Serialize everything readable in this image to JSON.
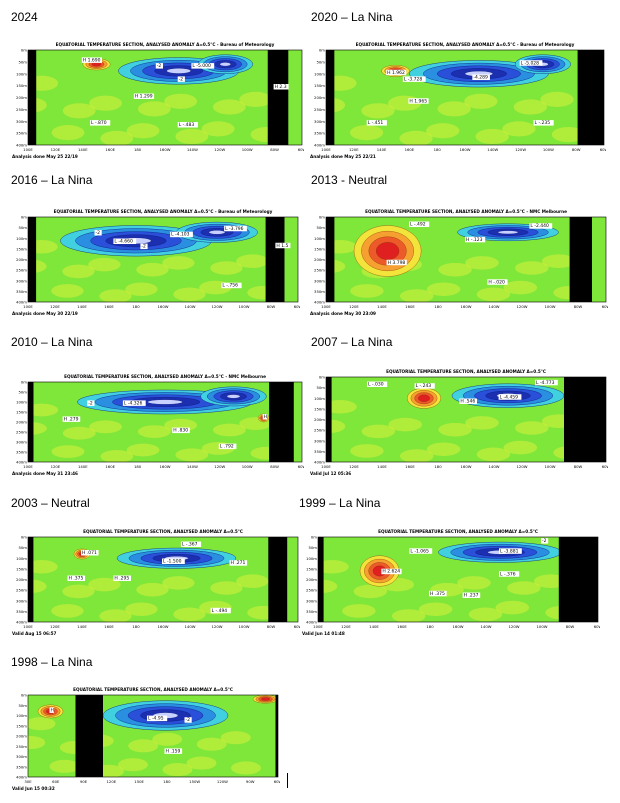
{
  "panels": [
    {
      "id": "p2024",
      "heading": "2024",
      "chart_title": "EQUATORIAL TEMPERATURE SECTION, ANALYSED ANOMALY  Δ=0.5°C  -  Bureau of Meteorology",
      "footer": "Analysis done May 25 22/19",
      "xticks": [
        "100E",
        "120E",
        "140E",
        "160E",
        "180",
        "160W",
        "140W",
        "120W",
        "100W",
        "80W",
        "60W"
      ],
      "yticks": [
        "0m",
        "50m",
        "100m",
        "150m",
        "200m",
        "250m",
        "300m",
        "350m",
        "400m"
      ],
      "labels": [
        {
          "t": "H 1.690",
          "x": 0.2,
          "y": 0.12
        },
        {
          "t": "-2",
          "x": 0.47,
          "y": 0.18
        },
        {
          "t": "L -5.000",
          "x": 0.6,
          "y": 0.18
        },
        {
          "t": "-2",
          "x": 0.55,
          "y": 0.32
        },
        {
          "t": "H 1.299",
          "x": 0.39,
          "y": 0.5
        },
        {
          "t": "H 2.3",
          "x": 0.9,
          "y": 0.4
        },
        {
          "t": "L -.870",
          "x": 0.23,
          "y": 0.78
        },
        {
          "t": "L -.483",
          "x": 0.55,
          "y": 0.8
        }
      ],
      "landmasks": [
        [
          0.0,
          0.03
        ],
        [
          0.875,
          0.95
        ]
      ],
      "cold": [
        {
          "cx": 0.55,
          "cy": 0.22,
          "rx": 0.22,
          "ry": 0.14
        },
        {
          "cx": 0.72,
          "cy": 0.15,
          "rx": 0.1,
          "ry": 0.1
        }
      ],
      "warm": [
        {
          "cx": 0.25,
          "cy": 0.15,
          "rx": 0.05,
          "ry": 0.06
        }
      ]
    },
    {
      "id": "p2020",
      "heading": "2020 – La Nina",
      "chart_title": "EQUATORIAL TEMPERATURE SECTION, ANALYSED ANOMALY  Δ=0.5°C  -  Bureau of Meteorology",
      "footer": "Analysis done May 25 22/21",
      "xticks": [
        "100E",
        "120E",
        "140E",
        "160E",
        "180",
        "160W",
        "140W",
        "120W",
        "100W",
        "80W",
        "60W"
      ],
      "yticks": [
        "0m",
        "50m",
        "100m",
        "150m",
        "200m",
        "250m",
        "300m",
        "350m",
        "400m"
      ],
      "labels": [
        {
          "t": "H 1.962",
          "x": 0.22,
          "y": 0.25
        },
        {
          "t": "L -3.728",
          "x": 0.28,
          "y": 0.32
        },
        {
          "t": "-4.289",
          "x": 0.53,
          "y": 0.3
        },
        {
          "t": "L -5.028",
          "x": 0.7,
          "y": 0.15
        },
        {
          "t": "H 1.965",
          "x": 0.3,
          "y": 0.55
        },
        {
          "t": "L -.451",
          "x": 0.15,
          "y": 0.78
        },
        {
          "t": "L -.235",
          "x": 0.75,
          "y": 0.78
        }
      ],
      "landmasks": [
        [
          0.0,
          0.03
        ],
        [
          0.905,
          1.0
        ]
      ],
      "cold": [
        {
          "cx": 0.55,
          "cy": 0.25,
          "rx": 0.25,
          "ry": 0.14
        },
        {
          "cx": 0.78,
          "cy": 0.15,
          "rx": 0.1,
          "ry": 0.1
        }
      ],
      "warm": [
        {
          "cx": 0.25,
          "cy": 0.22,
          "rx": 0.05,
          "ry": 0.06
        }
      ]
    },
    {
      "id": "p2016",
      "heading": "2016 – La Nina",
      "chart_title": "EQUATORIAL TEMPERATURE SECTION, ANALYSED ANOMALY  Δ=0.5°C  -  Bureau of Meteorology",
      "footer": "Analysis done May 30 22/19",
      "xticks": [
        "100E",
        "120E",
        "140E",
        "160E",
        "180",
        "160W",
        "140W",
        "120W",
        "100W",
        "80W",
        "60W"
      ],
      "yticks": [
        "0m",
        "50m",
        "100m",
        "150m",
        "200m",
        "250m",
        "300m",
        "350m",
        "400m"
      ],
      "labels": [
        {
          "t": "-2",
          "x": 0.25,
          "y": 0.2
        },
        {
          "t": "L -4.660",
          "x": 0.32,
          "y": 0.3
        },
        {
          "t": "-2",
          "x": 0.42,
          "y": 0.36
        },
        {
          "t": "L -4.103",
          "x": 0.53,
          "y": 0.22
        },
        {
          "t": "L -3.796",
          "x": 0.73,
          "y": 0.15
        },
        {
          "t": "H 1.5",
          "x": 0.92,
          "y": 0.35
        },
        {
          "t": "L -.756",
          "x": 0.72,
          "y": 0.82
        }
      ],
      "landmasks": [
        [
          0.0,
          0.03
        ],
        [
          0.88,
          0.95
        ]
      ],
      "cold": [
        {
          "cx": 0.4,
          "cy": 0.28,
          "rx": 0.28,
          "ry": 0.18
        },
        {
          "cx": 0.7,
          "cy": 0.18,
          "rx": 0.15,
          "ry": 0.12
        }
      ],
      "warm": []
    },
    {
      "id": "p2013",
      "heading": "2013 - Neutral",
      "chart_title": "EQUATORIAL TEMPERATURE SECTION, ANALYSED ANOMALY  Δ=0.5°C  -  NMC Melbourne",
      "footer": "Analysis done May 30 23:09",
      "xticks": [
        "100E",
        "120E",
        "140E",
        "160E",
        "180",
        "160W",
        "140W",
        "120W",
        "100W",
        "80W",
        "60W"
      ],
      "yticks": [
        "0m",
        "50m",
        "100m",
        "150m",
        "200m",
        "250m",
        "300m",
        "350m",
        "400m"
      ],
      "labels": [
        {
          "t": "L -.492",
          "x": 0.3,
          "y": 0.1
        },
        {
          "t": "H -.123",
          "x": 0.5,
          "y": 0.28
        },
        {
          "t": "L -2.440",
          "x": 0.73,
          "y": 0.12
        },
        {
          "t": "H 3.798",
          "x": 0.22,
          "y": 0.55
        },
        {
          "t": "H -.020",
          "x": 0.58,
          "y": 0.78
        }
      ],
      "landmasks": [
        [
          0.0,
          0.03
        ],
        [
          0.87,
          0.95
        ]
      ],
      "cold": [
        {
          "cx": 0.65,
          "cy": 0.18,
          "rx": 0.18,
          "ry": 0.1
        }
      ],
      "warm": [
        {
          "cx": 0.22,
          "cy": 0.4,
          "rx": 0.12,
          "ry": 0.3
        }
      ]
    },
    {
      "id": "p2010",
      "heading": "2010 – La Nina",
      "chart_title": "EQUATORIAL TEMPERATURE SECTION, ANALYSED ANOMALY  Δ=0.5°C  -  NMC Melbourne",
      "footer": "Analysis done May 31 23:46",
      "xticks": [
        "100E",
        "120E",
        "140E",
        "160E",
        "180",
        "160W",
        "140W",
        "120W",
        "100W",
        "80W",
        "60W"
      ],
      "yticks": [
        "0m",
        "50m",
        "100m",
        "150m",
        "200m",
        "250m",
        "300m",
        "350m",
        "400m"
      ],
      "labels": [
        {
          "t": "-2",
          "x": 0.22,
          "y": 0.28
        },
        {
          "t": "L -4.326",
          "x": 0.35,
          "y": 0.28
        },
        {
          "t": "H .279",
          "x": 0.13,
          "y": 0.48
        },
        {
          "t": "H .830",
          "x": 0.53,
          "y": 0.62
        },
        {
          "t": "H",
          "x": 0.86,
          "y": 0.45
        },
        {
          "t": "L .792",
          "x": 0.7,
          "y": 0.82
        }
      ],
      "landmasks": [
        [
          0.0,
          0.02
        ],
        [
          0.88,
          0.97
        ]
      ],
      "cold": [
        {
          "cx": 0.5,
          "cy": 0.25,
          "rx": 0.32,
          "ry": 0.15
        },
        {
          "cx": 0.75,
          "cy": 0.18,
          "rx": 0.12,
          "ry": 0.12
        }
      ],
      "warm": [
        {
          "cx": 0.86,
          "cy": 0.45,
          "rx": 0.02,
          "ry": 0.05
        }
      ]
    },
    {
      "id": "p2007",
      "heading": "2007 – La Nina",
      "chart_title": "EQUATORIAL TEMPERATURE SECTION, ANALYSED ANOMALY  Δ=0.5°C",
      "footer": "Valid Jul 12 05:36",
      "xticks": [
        "100E",
        "120E",
        "140E",
        "160E",
        "180",
        "160W",
        "140W",
        "120W",
        "100W",
        "80W",
        "60W"
      ],
      "yticks": [
        "0m",
        "50m",
        "100m",
        "150m",
        "200m",
        "250m",
        "300m",
        "350m",
        "400m"
      ],
      "labels": [
        {
          "t": "L -.030",
          "x": 0.15,
          "y": 0.1
        },
        {
          "t": "L -.243",
          "x": 0.32,
          "y": 0.12
        },
        {
          "t": "H .546",
          "x": 0.48,
          "y": 0.3
        },
        {
          "t": "L -4.459",
          "x": 0.62,
          "y": 0.25
        },
        {
          "t": "L -4.773",
          "x": 0.75,
          "y": 0.08
        }
      ],
      "landmasks": [
        [
          0.0,
          0.02
        ],
        [
          0.85,
          1.0
        ]
      ],
      "cold": [
        {
          "cx": 0.65,
          "cy": 0.22,
          "rx": 0.2,
          "ry": 0.14
        }
      ],
      "warm": [
        {
          "cx": 0.35,
          "cy": 0.25,
          "rx": 0.06,
          "ry": 0.12
        }
      ]
    },
    {
      "id": "p2003",
      "heading": "2003 – Neutral",
      "chart_title": "EQUATORIAL TEMPERATURE SECTION, ANALYSED ANOMALY  Δ=0.5°C",
      "footer": "Valid Aug 15 06:57",
      "xticks": [
        "100E",
        "120E",
        "140E",
        "160E",
        "180",
        "160W",
        "140W",
        "120W",
        "100W",
        "80W",
        "60W"
      ],
      "yticks": [
        "0m",
        "50m",
        "100m",
        "150m",
        "200m",
        "250m",
        "300m",
        "350m",
        "400m"
      ],
      "labels": [
        {
          "t": "H .071",
          "x": 0.2,
          "y": 0.2
        },
        {
          "t": "L -.367",
          "x": 0.57,
          "y": 0.1
        },
        {
          "t": "L -1.500",
          "x": 0.5,
          "y": 0.3
        },
        {
          "t": "H .271",
          "x": 0.75,
          "y": 0.32
        },
        {
          "t": "H .375",
          "x": 0.15,
          "y": 0.5
        },
        {
          "t": "H .295",
          "x": 0.32,
          "y": 0.5
        },
        {
          "t": "L -.494",
          "x": 0.68,
          "y": 0.88
        }
      ],
      "landmasks": [
        [
          0.0,
          0.02
        ],
        [
          0.89,
          0.96
        ]
      ],
      "cold": [
        {
          "cx": 0.55,
          "cy": 0.25,
          "rx": 0.22,
          "ry": 0.12
        }
      ],
      "warm": [
        {
          "cx": 0.2,
          "cy": 0.2,
          "rx": 0.03,
          "ry": 0.06
        }
      ]
    },
    {
      "id": "p1999",
      "heading": "1999 – La Nina",
      "chart_title": "EQUATORIAL TEMPERATURE SECTION, ANALYSED ANOMALY  Δ=0.5°C",
      "footer": "Valid Jun 14 01:48",
      "xticks": [
        "100E",
        "120E",
        "140E",
        "160E",
        "180",
        "160W",
        "140W",
        "120W",
        "100W",
        "80W",
        "60W"
      ],
      "yticks": [
        "0m",
        "50m",
        "100m",
        "150m",
        "200m",
        "250m",
        "300m",
        "350m",
        "400m"
      ],
      "labels": [
        {
          "t": "L -1.065",
          "x": 0.33,
          "y": 0.18
        },
        {
          "t": "L -3.881",
          "x": 0.65,
          "y": 0.18
        },
        {
          "t": "-2",
          "x": 0.8,
          "y": 0.06
        },
        {
          "t": "H 2.624",
          "x": 0.23,
          "y": 0.42
        },
        {
          "t": "H .375",
          "x": 0.4,
          "y": 0.68
        },
        {
          "t": "L -.376",
          "x": 0.65,
          "y": 0.45
        },
        {
          "t": "H .237",
          "x": 0.52,
          "y": 0.7
        }
      ],
      "landmasks": [
        [
          0.0,
          0.02
        ],
        [
          0.86,
          1.0
        ]
      ],
      "cold": [
        {
          "cx": 0.65,
          "cy": 0.18,
          "rx": 0.22,
          "ry": 0.12
        }
      ],
      "warm": [
        {
          "cx": 0.22,
          "cy": 0.4,
          "rx": 0.07,
          "ry": 0.18
        }
      ]
    },
    {
      "id": "p1998",
      "heading": "1998 – La Nina",
      "chart_title": "EQUATORIAL TEMPERATURE SECTION, ANALYSED ANOMALY  Δ=0.5°C",
      "footer": "Valid Jun 15 00:32",
      "xticks": [
        "30E",
        "60E",
        "90E",
        "120E",
        "150E",
        "180",
        "150W",
        "120W",
        "90W",
        "60W"
      ],
      "yticks": [
        "0m",
        "50m",
        "100m",
        "150m",
        "200m",
        "250m",
        "300m",
        "350m",
        "400m"
      ],
      "labels": [
        {
          "t": "H",
          "x": 0.09,
          "y": 0.2
        },
        {
          "t": "L -4.95",
          "x": 0.48,
          "y": 0.3
        },
        {
          "t": "-2",
          "x": 0.63,
          "y": 0.32
        },
        {
          "t": "H .159",
          "x": 0.55,
          "y": 0.7
        }
      ],
      "landmasks": [
        [
          0.19,
          0.3
        ],
        [
          0.99,
          1.0
        ]
      ],
      "cold": [
        {
          "cx": 0.55,
          "cy": 0.25,
          "rx": 0.25,
          "ry": 0.18
        }
      ],
      "warm": [
        {
          "cx": 0.09,
          "cy": 0.2,
          "rx": 0.05,
          "ry": 0.08
        },
        {
          "cx": 0.95,
          "cy": 0.05,
          "rx": 0.05,
          "ry": 0.05
        }
      ]
    }
  ]
}
